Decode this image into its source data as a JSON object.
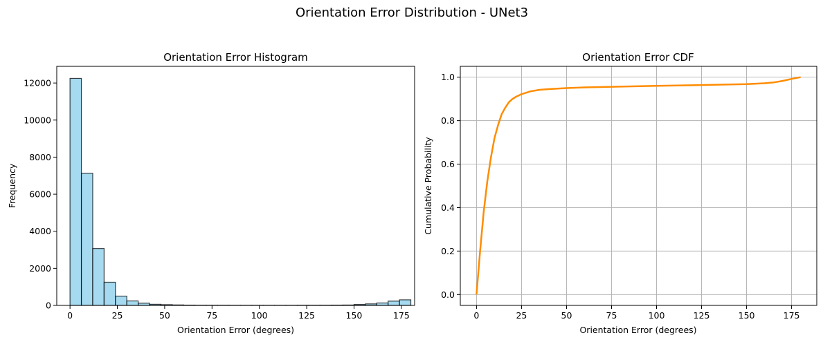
{
  "figure": {
    "suptitle": "Orientation Error Distribution - UNet3"
  },
  "chart_data": [
    {
      "type": "bar",
      "title": "Orientation Error Histogram",
      "xlabel": "Orientation Error (degrees)",
      "ylabel": "Frequency",
      "xlim": [
        -7,
        182
      ],
      "ylim": [
        0,
        12900
      ],
      "xticks": [
        "0",
        "25",
        "50",
        "75",
        "100",
        "125",
        "150",
        "175"
      ],
      "yticks": [
        "0",
        "2000",
        "4000",
        "6000",
        "8000",
        "10000",
        "12000"
      ],
      "bin_edges": [
        0,
        6,
        12,
        18,
        24,
        30,
        36,
        42,
        48,
        54,
        60,
        66,
        72,
        78,
        84,
        90,
        96,
        102,
        108,
        114,
        120,
        126,
        132,
        138,
        144,
        150,
        156,
        162,
        168,
        174,
        180
      ],
      "values": [
        12250,
        7130,
        3070,
        1250,
        500,
        240,
        120,
        60,
        40,
        25,
        15,
        10,
        8,
        8,
        5,
        5,
        5,
        5,
        5,
        5,
        8,
        8,
        10,
        15,
        20,
        50,
        80,
        130,
        230,
        300
      ],
      "color": "#87ceeb",
      "edge_color": "#000000",
      "grid": false
    },
    {
      "type": "line",
      "title": "Orientation Error CDF",
      "xlabel": "Orientation Error (degrees)",
      "ylabel": "Cumulative Probability",
      "xlim": [
        -9,
        189
      ],
      "ylim": [
        -0.05,
        1.05
      ],
      "xticks": [
        "0",
        "25",
        "50",
        "75",
        "100",
        "125",
        "150",
        "175"
      ],
      "yticks": [
        "0.0",
        "0.2",
        "0.4",
        "0.6",
        "0.8",
        "1.0"
      ],
      "x": [
        0,
        2,
        4,
        6,
        8,
        10,
        12,
        14,
        16,
        18,
        20,
        22,
        25,
        30,
        35,
        40,
        50,
        60,
        75,
        100,
        125,
        150,
        160,
        165,
        170,
        175,
        180
      ],
      "y": [
        0.0,
        0.2,
        0.38,
        0.52,
        0.63,
        0.72,
        0.78,
        0.83,
        0.86,
        0.885,
        0.9,
        0.91,
        0.922,
        0.935,
        0.942,
        0.945,
        0.95,
        0.953,
        0.956,
        0.96,
        0.964,
        0.968,
        0.972,
        0.976,
        0.983,
        0.992,
        1.0
      ],
      "color": "#ff8c00",
      "grid": true
    }
  ]
}
